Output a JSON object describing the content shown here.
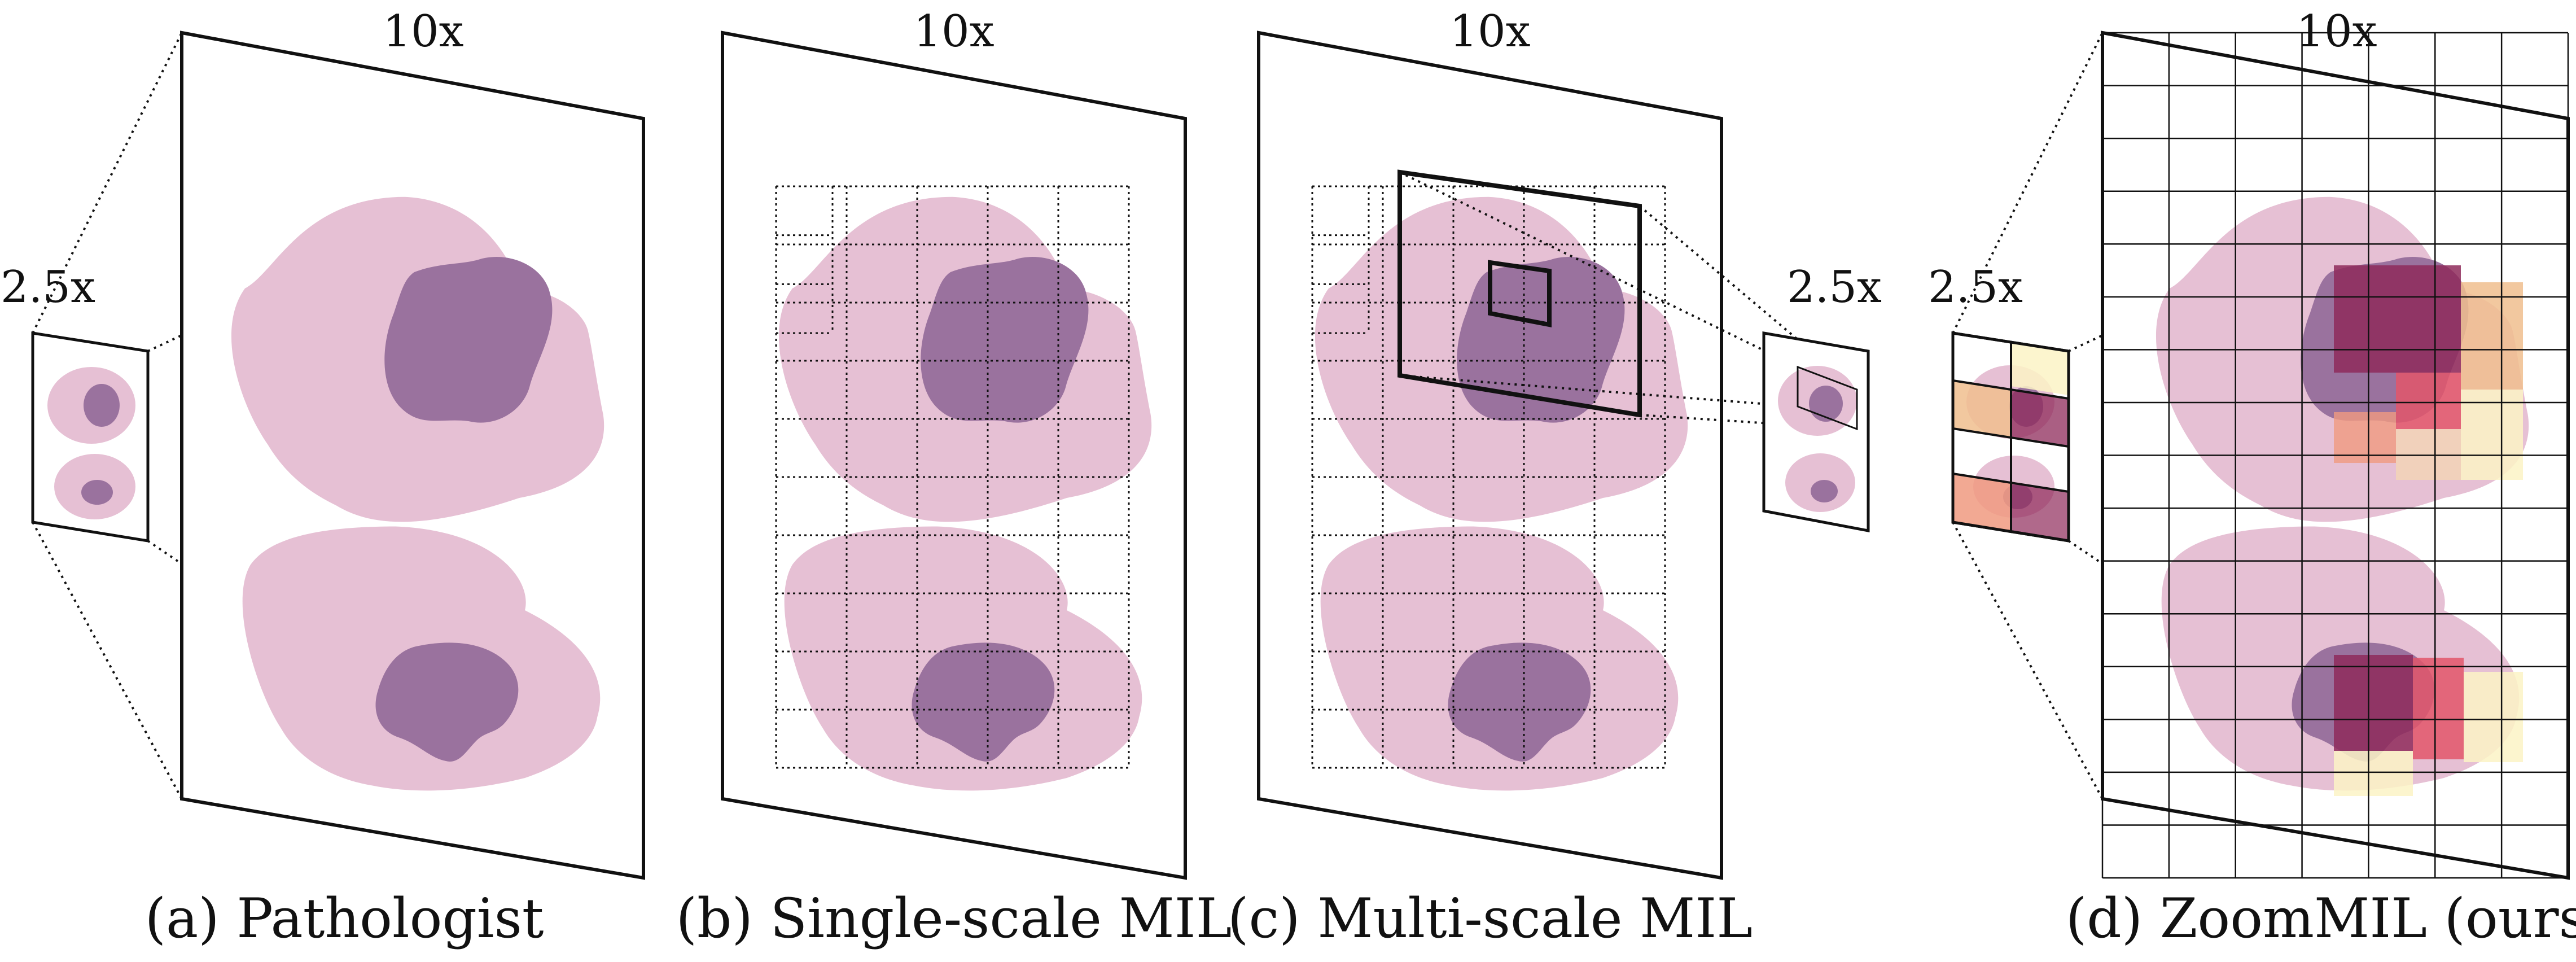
{
  "colors": {
    "tissue_light": "#e6c0d4",
    "tissue_dark": "#9a729e",
    "heat_deep": "#8e2a5a",
    "heat_red": "#e2566a",
    "heat_salmon": "#f09a80",
    "heat_orange": "#f0be8e",
    "heat_peach": "#f4d4b4",
    "heat_cream": "#fcf3c6",
    "outline": "#111111"
  },
  "panels": [
    {
      "id": "a",
      "caption": "(a) Pathologist",
      "mag_high": "10x",
      "mag_low": "2.5x"
    },
    {
      "id": "b",
      "caption": "(b) Single-scale MIL",
      "mag_high": "10x"
    },
    {
      "id": "c",
      "caption": "(c) Multi-scale MIL",
      "mag_high": "10x",
      "mag_low": "2.5x"
    },
    {
      "id": "d",
      "caption": "(d) ZoomMIL (ours)",
      "mag_high": "10x",
      "mag_low": "2.5x"
    }
  ]
}
